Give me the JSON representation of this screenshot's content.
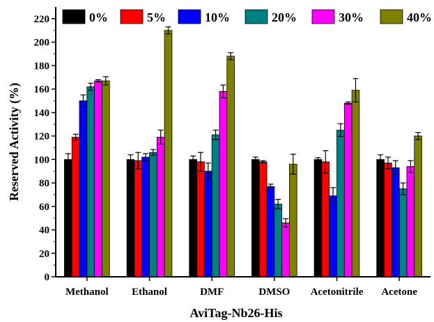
{
  "chart_data": {
    "type": "bar",
    "categories": [
      "Methanol",
      "Ethanol",
      "DMF",
      "DMSO",
      "Acetonitrile",
      "Acetone"
    ],
    "series": [
      {
        "name": "0%",
        "color": "#000000",
        "values": [
          100,
          100,
          100,
          100,
          100,
          100
        ],
        "errors": [
          5,
          4,
          3,
          2,
          1.5,
          4
        ]
      },
      {
        "name": "5%",
        "color": "#ff0000",
        "values": [
          119,
          99,
          98,
          98,
          98,
          97
        ],
        "errors": [
          2.5,
          7,
          8,
          1,
          9.5,
          5
        ]
      },
      {
        "name": "10%",
        "color": "#0000ff",
        "values": [
          150,
          102,
          90,
          77,
          69,
          93
        ],
        "errors": [
          5,
          3,
          7,
          2,
          7,
          6
        ]
      },
      {
        "name": "20%",
        "color": "#008080",
        "values": [
          162,
          106,
          121,
          62,
          125,
          75
        ],
        "errors": [
          3,
          2.5,
          4,
          4,
          5.5,
          5
        ]
      },
      {
        "name": "30%",
        "color": "#ff00ff",
        "values": [
          167,
          119,
          158,
          46,
          148,
          94
        ],
        "errors": [
          1,
          6,
          5.5,
          3.5,
          1,
          5
        ]
      },
      {
        "name": "40%",
        "color": "#808000",
        "values": [
          167,
          210,
          188,
          96,
          159,
          120
        ],
        "errors": [
          3.5,
          3,
          3,
          8.5,
          10,
          3
        ]
      }
    ],
    "title": "",
    "xlabel": "AviTag-Nb26-His",
    "ylabel": "Reserved Activity (%)",
    "ylim": [
      0,
      230
    ],
    "yticks": [
      0,
      20,
      40,
      60,
      80,
      100,
      120,
      140,
      160,
      180,
      200,
      220
    ],
    "legend_position": "top",
    "grid": false
  }
}
